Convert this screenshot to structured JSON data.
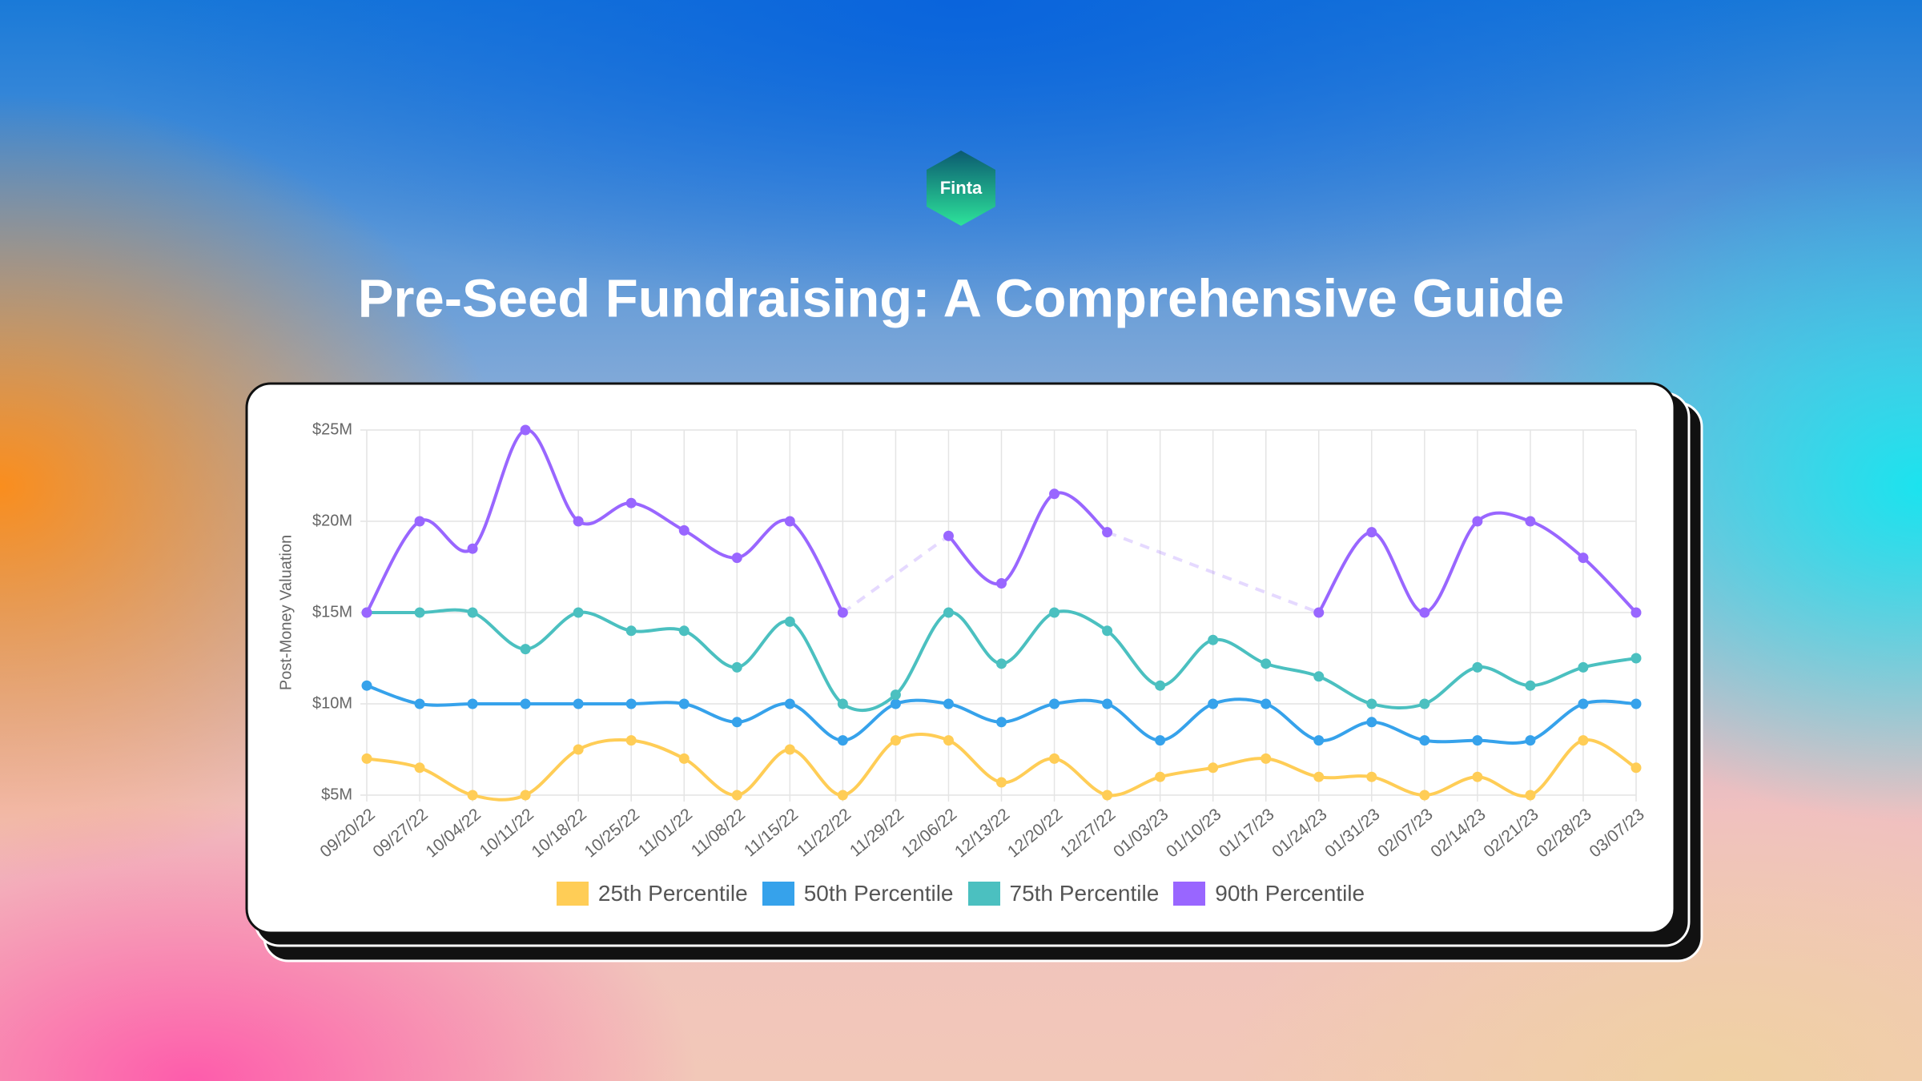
{
  "logo": "Finta",
  "title": "Pre-Seed Fundraising: A Comprehensive Guide",
  "chart_data": {
    "type": "line",
    "y_label": "Post-Money Valuation",
    "categories": [
      "09/20/22",
      "09/27/22",
      "10/04/22",
      "10/11/22",
      "10/18/22",
      "10/25/22",
      "11/01/22",
      "11/08/22",
      "11/15/22",
      "11/22/22",
      "11/29/22",
      "12/06/22",
      "12/13/22",
      "12/20/22",
      "12/27/22",
      "01/03/23",
      "01/10/23",
      "01/17/23",
      "01/24/23",
      "01/31/23",
      "02/07/23",
      "02/14/23",
      "02/21/23",
      "02/28/23",
      "03/07/23"
    ],
    "series": [
      {
        "name": "25th Percentile",
        "color": "#ffcd56",
        "values": [
          7,
          6.5,
          5,
          5,
          7.5,
          8,
          7,
          5,
          7.5,
          5,
          8,
          8,
          5.7,
          7,
          5,
          6,
          6.5,
          7,
          6,
          6,
          5,
          6,
          5,
          8,
          6.5
        ]
      },
      {
        "name": "50th Percentile",
        "color": "#36a2eb",
        "values": [
          11,
          10,
          10,
          10,
          10,
          10,
          10,
          9,
          10,
          8,
          10,
          10,
          9,
          10,
          10,
          8,
          10,
          10,
          8,
          9,
          8,
          8,
          8,
          10,
          10
        ]
      },
      {
        "name": "75th Percentile",
        "color": "#4bc0c0",
        "values": [
          15,
          15,
          15,
          13,
          15,
          14,
          14,
          12,
          14.5,
          10,
          10.5,
          15,
          12.2,
          15,
          14,
          11,
          13.5,
          12.2,
          11.5,
          10,
          10,
          12,
          11,
          12,
          12.5
        ]
      },
      {
        "name": "90th Percentile",
        "color": "#9966ff",
        "values": [
          15,
          20,
          18.5,
          25,
          20,
          21,
          19.5,
          18,
          20,
          15,
          null,
          19.2,
          16.6,
          21.5,
          19.4,
          null,
          null,
          null,
          15,
          19.4,
          15,
          20,
          20,
          18,
          15
        ]
      }
    ],
    "ylim": [
      5,
      25
    ],
    "yticks": [
      {
        "value": 5,
        "label": "$5M"
      },
      {
        "value": 10,
        "label": "$10M"
      },
      {
        "value": 15,
        "label": "$15M"
      },
      {
        "value": 20,
        "label": "$20M"
      },
      {
        "value": 25,
        "label": "$25M"
      }
    ],
    "grid": true,
    "gap_line": "dashed",
    "legend": "bottom"
  }
}
